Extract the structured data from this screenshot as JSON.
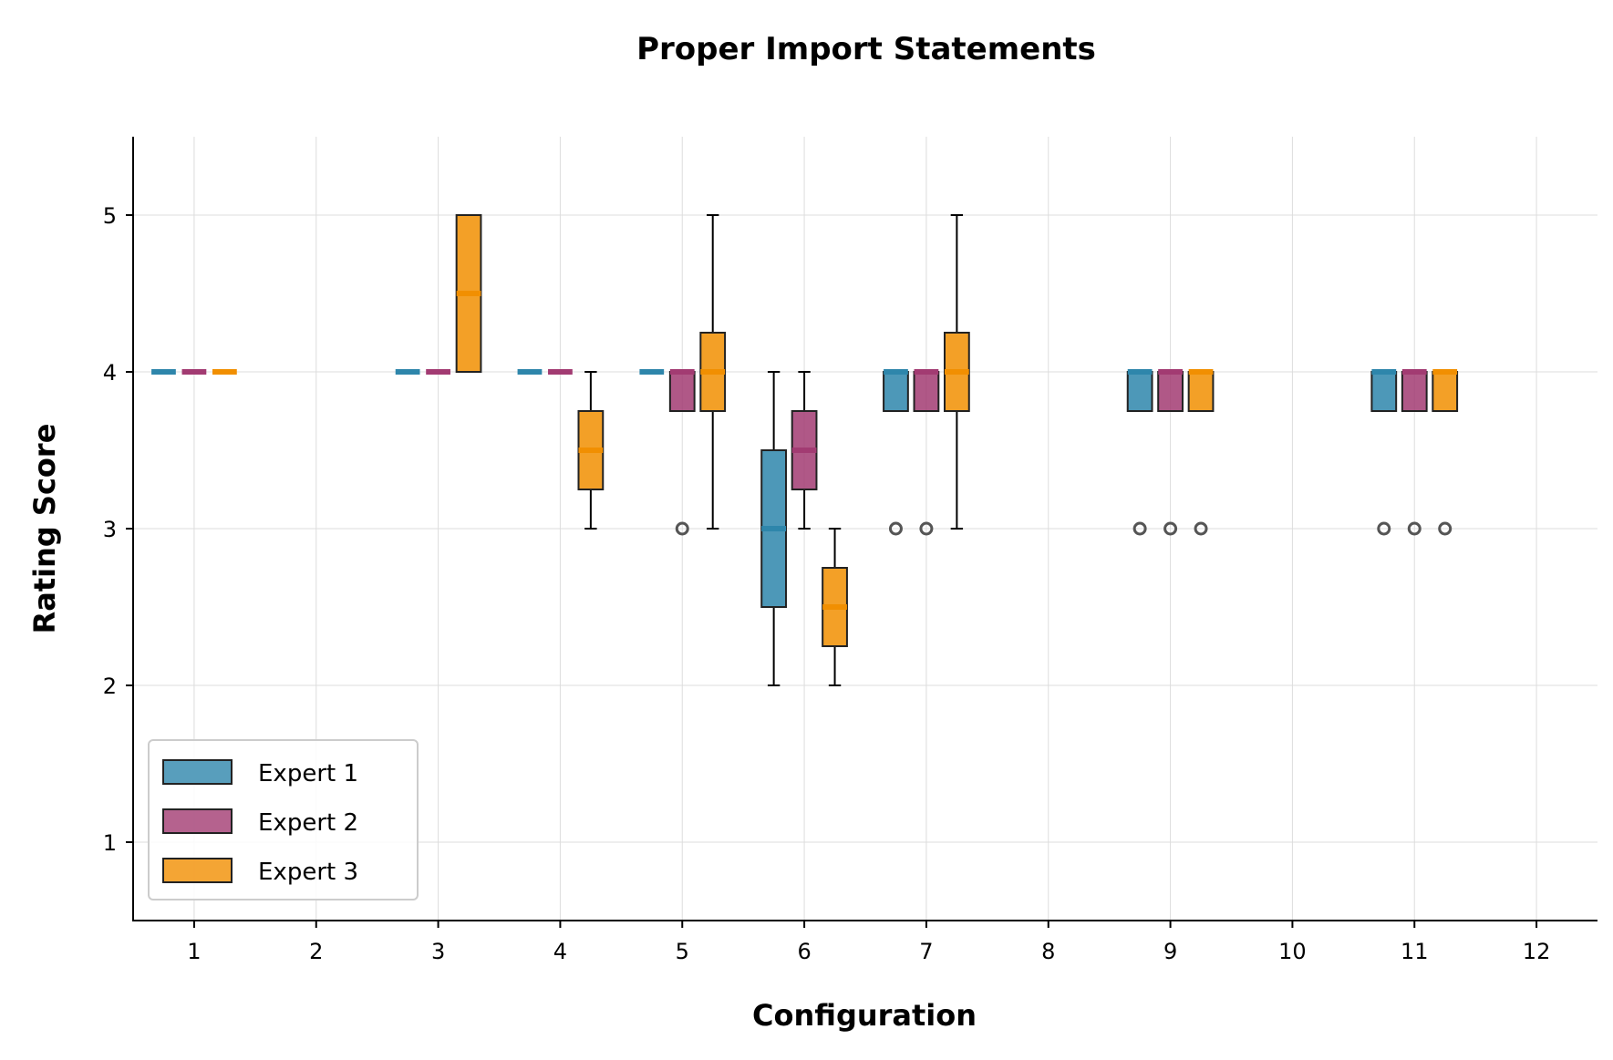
{
  "chart_data": {
    "type": "box",
    "title": "Proper Import Statements",
    "xlabel": "Configuration",
    "ylabel": "Rating Score",
    "categories": [
      "1",
      "2",
      "3",
      "4",
      "5",
      "6",
      "7",
      "8",
      "9",
      "10",
      "11",
      "12"
    ],
    "xlim": [
      0.5,
      12.5
    ],
    "ylim": [
      0.5,
      5.5
    ],
    "yticks": [
      1,
      2,
      3,
      4,
      5
    ],
    "grid": true,
    "legend_position": "lower-left",
    "series": [
      {
        "name": "Expert 1",
        "color": "#2e86ab",
        "boxes": [
          {
            "x": 1,
            "q1": 4,
            "median": 4,
            "q3": 4,
            "whislo": 4,
            "whishi": 4,
            "fliers": []
          },
          {
            "x": 3,
            "q1": 4,
            "median": 4,
            "q3": 4,
            "whislo": 4,
            "whishi": 4,
            "fliers": []
          },
          {
            "x": 4,
            "q1": 4,
            "median": 4,
            "q3": 4,
            "whislo": 4,
            "whishi": 4,
            "fliers": []
          },
          {
            "x": 5,
            "q1": 4,
            "median": 4,
            "q3": 4,
            "whislo": 4,
            "whishi": 4,
            "fliers": []
          },
          {
            "x": 6,
            "q1": 2.5,
            "median": 3,
            "q3": 3.5,
            "whislo": 2,
            "whishi": 4,
            "fliers": []
          },
          {
            "x": 7,
            "q1": 3.75,
            "median": 4,
            "q3": 4,
            "whislo": 3.75,
            "whishi": 4,
            "fliers": [
              3
            ]
          },
          {
            "x": 9,
            "q1": 3.75,
            "median": 4,
            "q3": 4,
            "whislo": 3.75,
            "whishi": 4,
            "fliers": [
              3
            ]
          },
          {
            "x": 11,
            "q1": 3.75,
            "median": 4,
            "q3": 4,
            "whislo": 3.75,
            "whishi": 4,
            "fliers": [
              3
            ]
          }
        ]
      },
      {
        "name": "Expert 2",
        "color": "#a23b72",
        "boxes": [
          {
            "x": 1,
            "q1": 4,
            "median": 4,
            "q3": 4,
            "whislo": 4,
            "whishi": 4,
            "fliers": []
          },
          {
            "x": 3,
            "q1": 4,
            "median": 4,
            "q3": 4,
            "whislo": 4,
            "whishi": 4,
            "fliers": []
          },
          {
            "x": 4,
            "q1": 4,
            "median": 4,
            "q3": 4,
            "whislo": 4,
            "whishi": 4,
            "fliers": []
          },
          {
            "x": 5,
            "q1": 3.75,
            "median": 4,
            "q3": 4,
            "whislo": 3.75,
            "whishi": 4,
            "fliers": [
              3
            ]
          },
          {
            "x": 6,
            "q1": 3.25,
            "median": 3.5,
            "q3": 3.75,
            "whislo": 3,
            "whishi": 4,
            "fliers": []
          },
          {
            "x": 7,
            "q1": 3.75,
            "median": 4,
            "q3": 4,
            "whislo": 3.75,
            "whishi": 4,
            "fliers": [
              3
            ]
          },
          {
            "x": 9,
            "q1": 3.75,
            "median": 4,
            "q3": 4,
            "whislo": 3.75,
            "whishi": 4,
            "fliers": [
              3
            ]
          },
          {
            "x": 11,
            "q1": 3.75,
            "median": 4,
            "q3": 4,
            "whislo": 3.75,
            "whishi": 4,
            "fliers": [
              3
            ]
          }
        ]
      },
      {
        "name": "Expert 3",
        "color": "#f18f01",
        "boxes": [
          {
            "x": 1,
            "q1": 4,
            "median": 4,
            "q3": 4,
            "whislo": 4,
            "whishi": 4,
            "fliers": []
          },
          {
            "x": 3,
            "q1": 4,
            "median": 4.5,
            "q3": 5,
            "whislo": 4,
            "whishi": 5,
            "fliers": []
          },
          {
            "x": 4,
            "q1": 3.25,
            "median": 3.5,
            "q3": 3.75,
            "whislo": 3,
            "whishi": 4,
            "fliers": []
          },
          {
            "x": 5,
            "q1": 3.75,
            "median": 4,
            "q3": 4.25,
            "whislo": 3,
            "whishi": 5,
            "fliers": []
          },
          {
            "x": 6,
            "q1": 2.25,
            "median": 2.5,
            "q3": 2.75,
            "whislo": 2,
            "whishi": 3,
            "fliers": []
          },
          {
            "x": 7,
            "q1": 3.75,
            "median": 4,
            "q3": 4.25,
            "whislo": 3,
            "whishi": 5,
            "fliers": []
          },
          {
            "x": 9,
            "q1": 3.75,
            "median": 4,
            "q3": 4,
            "whislo": 3.75,
            "whishi": 4,
            "fliers": [
              3
            ]
          },
          {
            "x": 11,
            "q1": 3.75,
            "median": 4,
            "q3": 4,
            "whislo": 3.75,
            "whishi": 4,
            "fliers": [
              3
            ]
          }
        ]
      }
    ]
  }
}
